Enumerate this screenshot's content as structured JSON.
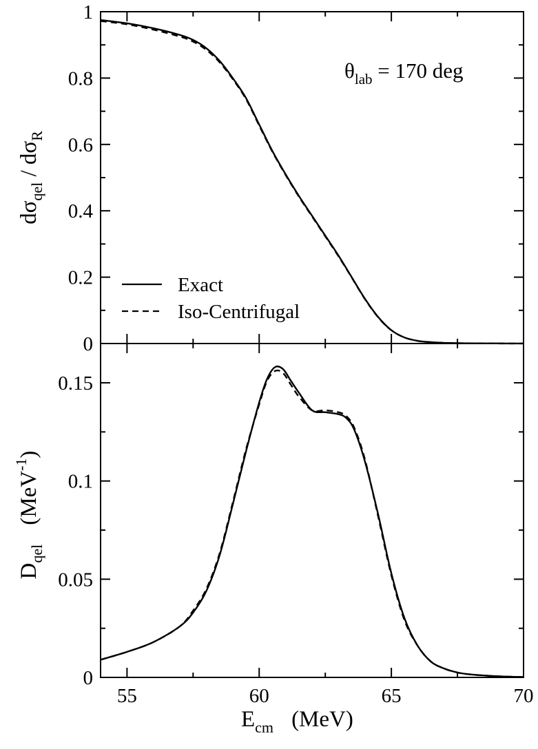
{
  "chart_data": [
    {
      "type": "line",
      "panel": "top",
      "ylabel": {
        "main": "dσ",
        "sub1": "qel",
        "mid": " / dσ",
        "sub2": "R"
      },
      "annotation": {
        "main": "θ",
        "sub": "lab",
        "rest": " = 170 deg"
      },
      "xlim": [
        54,
        70
      ],
      "ylim": [
        0,
        1
      ],
      "x_ticks": [
        55,
        60,
        65,
        70
      ],
      "y_ticks": [
        {
          "value": 0,
          "label": "0"
        },
        {
          "value": 0.2,
          "label": "0.2"
        },
        {
          "value": 0.4,
          "label": "0.4"
        },
        {
          "value": 0.6,
          "label": "0.6"
        },
        {
          "value": 0.8,
          "label": "0.8"
        },
        {
          "value": 1,
          "label": "1"
        }
      ],
      "legend": {
        "placement": "lower-left"
      },
      "series": [
        {
          "name": "Exact",
          "style": "solid",
          "x": [
            54,
            55,
            56,
            57,
            57.5,
            58,
            58.5,
            59,
            59.5,
            60,
            60.5,
            61,
            61.5,
            62,
            62.5,
            63,
            63.5,
            64,
            64.5,
            65,
            65.5,
            66,
            66.5,
            67,
            67.5,
            68,
            69,
            70
          ],
          "y": [
            0.975,
            0.965,
            0.95,
            0.93,
            0.915,
            0.89,
            0.852,
            0.8,
            0.74,
            0.66,
            0.58,
            0.51,
            0.445,
            0.385,
            0.325,
            0.265,
            0.2,
            0.135,
            0.08,
            0.04,
            0.018,
            0.008,
            0.004,
            0.002,
            0.0012,
            0.0007,
            0.0003,
            0.0001
          ]
        },
        {
          "name": "Iso-Centrifugal",
          "style": "dashed",
          "x": [
            54,
            55,
            56,
            57,
            57.5,
            58,
            58.5,
            59,
            59.5,
            60,
            60.5,
            61,
            61.5,
            62,
            62.5,
            63,
            63.5,
            64,
            64.5,
            65,
            65.5,
            66,
            66.5,
            67,
            67.5,
            68,
            69,
            70
          ],
          "y": [
            0.972,
            0.962,
            0.946,
            0.925,
            0.91,
            0.885,
            0.848,
            0.797,
            0.737,
            0.657,
            0.578,
            0.508,
            0.443,
            0.383,
            0.323,
            0.263,
            0.199,
            0.134,
            0.079,
            0.04,
            0.018,
            0.008,
            0.004,
            0.002,
            0.0012,
            0.0007,
            0.0003,
            0.0001
          ]
        }
      ]
    },
    {
      "type": "line",
      "panel": "bottom",
      "ylabel": {
        "main": "D",
        "sub": "qel",
        "unit_pre": "(MeV",
        "unit_sup": "-1",
        "unit_post": ")"
      },
      "xlabel": {
        "main": "E",
        "sub": "cm",
        "unit": "(MeV)"
      },
      "xlim": [
        54,
        70
      ],
      "ylim": [
        0,
        0.17
      ],
      "x_ticks": [
        {
          "value": 55,
          "label": "55"
        },
        {
          "value": 60,
          "label": "60"
        },
        {
          "value": 65,
          "label": "65"
        },
        {
          "value": 70,
          "label": "70"
        }
      ],
      "y_ticks": [
        {
          "value": 0,
          "label": "0"
        },
        {
          "value": 0.05,
          "label": "0.05"
        },
        {
          "value": 0.1,
          "label": "0.1"
        },
        {
          "value": 0.15,
          "label": "0.15"
        }
      ],
      "series": [
        {
          "name": "Exact",
          "style": "solid",
          "x": [
            54,
            55,
            56,
            57,
            57.5,
            58,
            58.5,
            59,
            59.5,
            60,
            60.3,
            60.6,
            60.9,
            61.2,
            61.5,
            62,
            62.5,
            63,
            63.3,
            63.6,
            64,
            64.5,
            65,
            65.5,
            66,
            66.5,
            67,
            67.5,
            68,
            69,
            70
          ],
          "y": [
            0.009,
            0.013,
            0.018,
            0.026,
            0.033,
            0.044,
            0.062,
            0.088,
            0.115,
            0.14,
            0.152,
            0.158,
            0.157,
            0.151,
            0.145,
            0.136,
            0.135,
            0.134,
            0.132,
            0.126,
            0.11,
            0.083,
            0.053,
            0.03,
            0.016,
            0.008,
            0.0045,
            0.0025,
            0.0015,
            0.0006,
            0.0002
          ]
        },
        {
          "name": "Iso-Centrifugal",
          "style": "dashed",
          "x": [
            54,
            55,
            56,
            57,
            57.5,
            58,
            58.5,
            59,
            59.5,
            60,
            60.3,
            60.6,
            60.9,
            61.2,
            61.5,
            62,
            62.5,
            63,
            63.3,
            63.6,
            64,
            64.5,
            65,
            65.5,
            66,
            66.5,
            67,
            67.5,
            68,
            69,
            70
          ],
          "y": [
            0.009,
            0.013,
            0.018,
            0.026,
            0.034,
            0.045,
            0.063,
            0.089,
            0.116,
            0.139,
            0.151,
            0.156,
            0.155,
            0.149,
            0.143,
            0.136,
            0.136,
            0.135,
            0.133,
            0.127,
            0.111,
            0.082,
            0.052,
            0.029,
            0.016,
            0.008,
            0.0045,
            0.0025,
            0.0015,
            0.0006,
            0.0002
          ]
        }
      ]
    }
  ]
}
